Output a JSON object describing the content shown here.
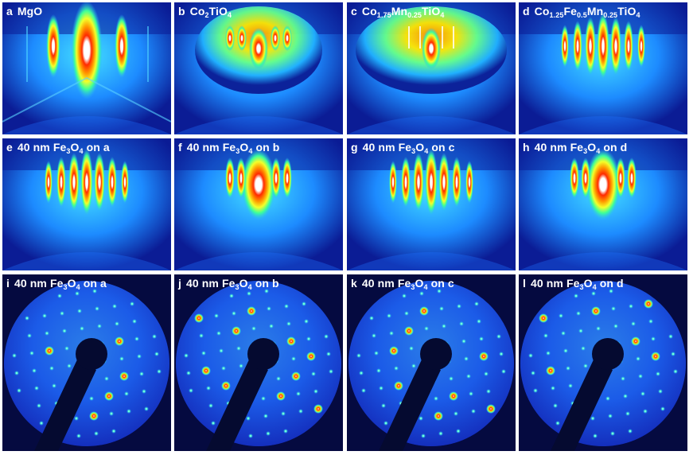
{
  "panels": [
    {
      "letter": "a",
      "parts": [
        "MgO"
      ],
      "type": "rheed-mgo"
    },
    {
      "letter": "b",
      "parts": [
        "Co",
        {
          "sub": "2"
        },
        "TiO",
        {
          "sub": "4"
        }
      ],
      "type": "rheed-cto"
    },
    {
      "letter": "c",
      "parts": [
        "Co",
        {
          "sub": "1.75"
        },
        "Mn",
        {
          "sub": "0.25"
        },
        "TiO",
        {
          "sub": "4"
        }
      ],
      "type": "rheed-cmto"
    },
    {
      "letter": "d",
      "parts": [
        "Co",
        {
          "sub": "1.25"
        },
        "Fe",
        {
          "sub": "0.5"
        },
        "Mn",
        {
          "sub": "0.25"
        },
        "TiO",
        {
          "sub": "4"
        }
      ],
      "type": "rheed-streaks"
    },
    {
      "letter": "e",
      "parts": [
        "40 nm Fe",
        {
          "sub": "3"
        },
        "O",
        {
          "sub": "4"
        },
        " on a"
      ],
      "type": "rheed-streaks"
    },
    {
      "letter": "f",
      "parts": [
        "40 nm Fe",
        {
          "sub": "3"
        },
        "O",
        {
          "sub": "4"
        },
        " on b"
      ],
      "type": "rheed-center"
    },
    {
      "letter": "g",
      "parts": [
        "40 nm Fe",
        {
          "sub": "3"
        },
        "O",
        {
          "sub": "4"
        },
        " on c"
      ],
      "type": "rheed-streaks"
    },
    {
      "letter": "h",
      "parts": [
        "40 nm Fe",
        {
          "sub": "3"
        },
        "O",
        {
          "sub": "4"
        },
        " on d"
      ],
      "type": "rheed-center"
    },
    {
      "letter": "i",
      "parts": [
        "40 nm Fe",
        {
          "sub": "3"
        },
        "O",
        {
          "sub": "4"
        },
        " on a"
      ],
      "type": "leed"
    },
    {
      "letter": "j",
      "parts": [
        "40 nm Fe",
        {
          "sub": "3"
        },
        "O",
        {
          "sub": "4"
        },
        " on b"
      ],
      "type": "leed"
    },
    {
      "letter": "k",
      "parts": [
        "40 nm Fe",
        {
          "sub": "3"
        },
        "O",
        {
          "sub": "4"
        },
        " on c"
      ],
      "type": "leed"
    },
    {
      "letter": "l",
      "parts": [
        "40 nm Fe",
        {
          "sub": "3"
        },
        "O",
        {
          "sub": "4"
        },
        " on d"
      ],
      "type": "leed"
    }
  ]
}
